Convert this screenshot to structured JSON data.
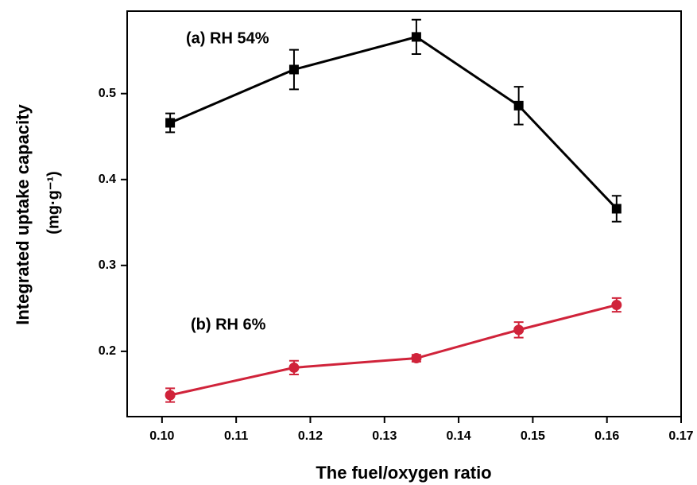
{
  "chart_data": {
    "type": "line",
    "xlabel": "The fuel/oxygen ratio",
    "ylabel": [
      "Integrated uptake capacity",
      "(mg·g⁻¹)"
    ],
    "annotations": [
      "(a)  RH 54%",
      "(b)  RH 6%"
    ],
    "x": [
      0.1011,
      0.1178,
      0.1343,
      0.1481,
      0.1613
    ],
    "series": [
      {
        "color": "#000000",
        "marker": "square",
        "values": [
          0.466,
          0.528,
          0.566,
          0.486,
          0.366
        ],
        "errors": [
          0.011,
          0.023,
          0.02,
          0.022,
          0.015
        ]
      },
      {
        "color": "#d0233a",
        "marker": "circle",
        "values": [
          0.149,
          0.181,
          0.192,
          0.225,
          0.254
        ],
        "errors": [
          0.008,
          0.008,
          0.004,
          0.009,
          0.008
        ]
      }
    ],
    "xlim": [
      0.0953,
      0.17
    ],
    "ylim": [
      0.124,
      0.596
    ],
    "xticks": [
      {
        "value": 0.1,
        "label": "0.10"
      },
      0.11,
      0.12,
      0.13,
      0.14,
      0.15,
      0.16,
      0.17
    ],
    "yticks": [
      0.2,
      0.3,
      0.4,
      0.5
    ]
  }
}
